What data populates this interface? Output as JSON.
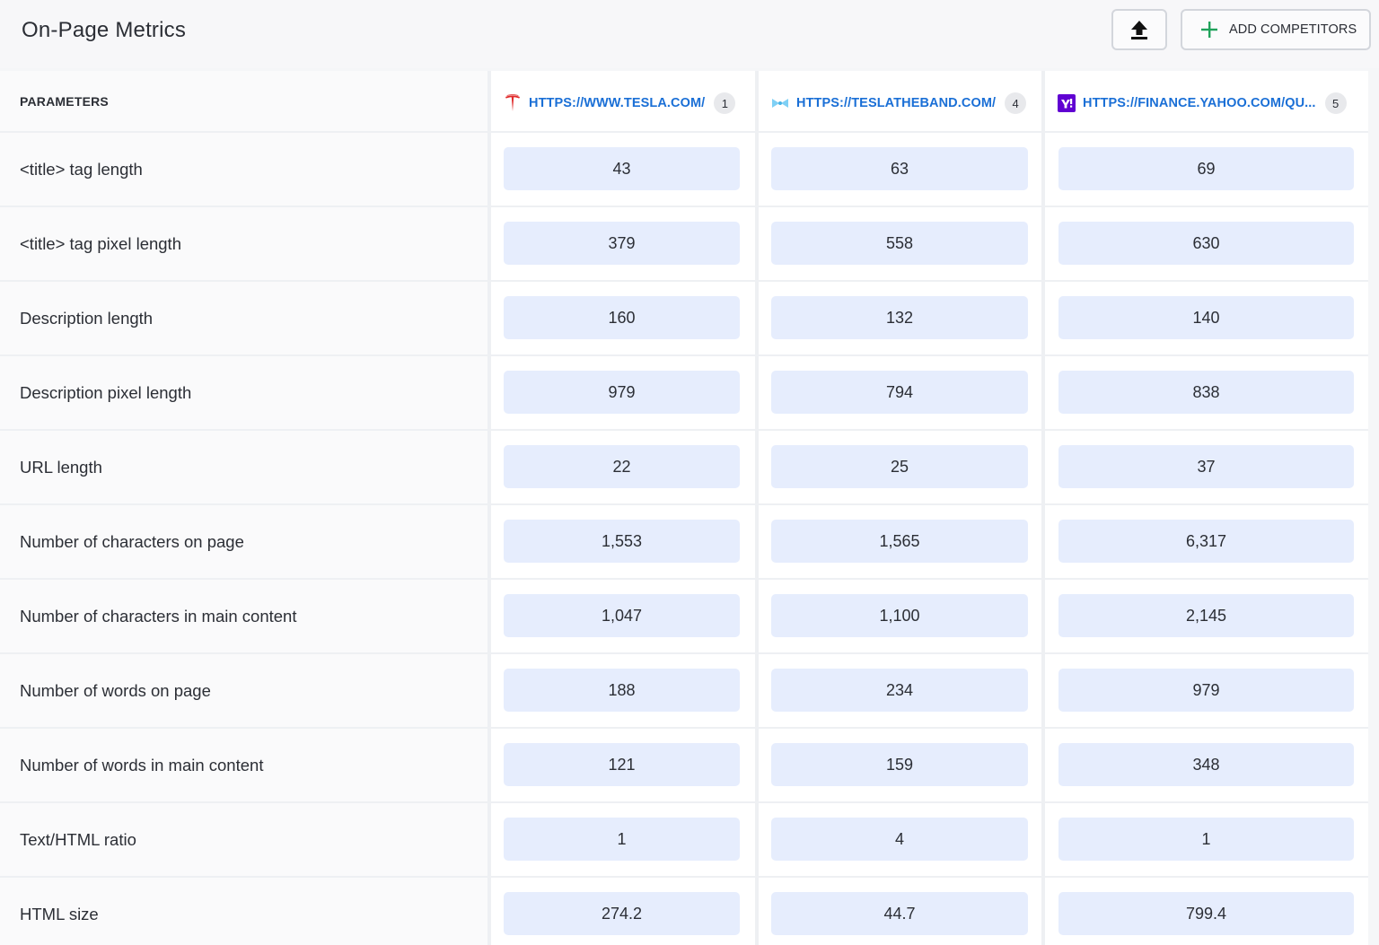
{
  "page": {
    "title": "On-Page Metrics"
  },
  "toolbar": {
    "export_icon": "upload-icon",
    "add_competitors_label": "ADD COMPETITORS",
    "add_icon": "plus-icon",
    "accent": "#1fa25a"
  },
  "table": {
    "params_header": "PARAMETERS",
    "sites": [
      {
        "url": "HTTPS://WWW.TESLA.COM/",
        "rank": "1",
        "favicon": "tesla-logo-icon",
        "color": "#e02b2b"
      },
      {
        "url": "HTTPS://TESLATHEBAND.COM/",
        "rank": "4",
        "favicon": "teslatheband-logo-icon",
        "color": "#6fc6f0"
      },
      {
        "url": "HTTPS://FINANCE.YAHOO.COM/QU...",
        "rank": "5",
        "favicon": "yahoo-logo-icon",
        "color": "#6001d2"
      }
    ],
    "rows": [
      {
        "label": "<title> tag length",
        "values": [
          "43",
          "63",
          "69"
        ]
      },
      {
        "label": "<title> tag pixel length",
        "values": [
          "379",
          "558",
          "630"
        ]
      },
      {
        "label": "Description length",
        "values": [
          "160",
          "132",
          "140"
        ]
      },
      {
        "label": "Description pixel length",
        "values": [
          "979",
          "794",
          "838"
        ]
      },
      {
        "label": "URL length",
        "values": [
          "22",
          "25",
          "37"
        ]
      },
      {
        "label": "Number of characters on page",
        "values": [
          "1,553",
          "1,565",
          "6,317"
        ]
      },
      {
        "label": "Number of characters in main content",
        "values": [
          "1,047",
          "1,100",
          "2,145"
        ]
      },
      {
        "label": "Number of words on page",
        "values": [
          "188",
          "234",
          "979"
        ]
      },
      {
        "label": "Number of words in main content",
        "values": [
          "121",
          "159",
          "348"
        ]
      },
      {
        "label": "Text/HTML ratio",
        "values": [
          "1",
          "4",
          "1"
        ]
      },
      {
        "label": "HTML size",
        "values": [
          "274.2",
          "44.7",
          "799.4"
        ]
      }
    ]
  }
}
